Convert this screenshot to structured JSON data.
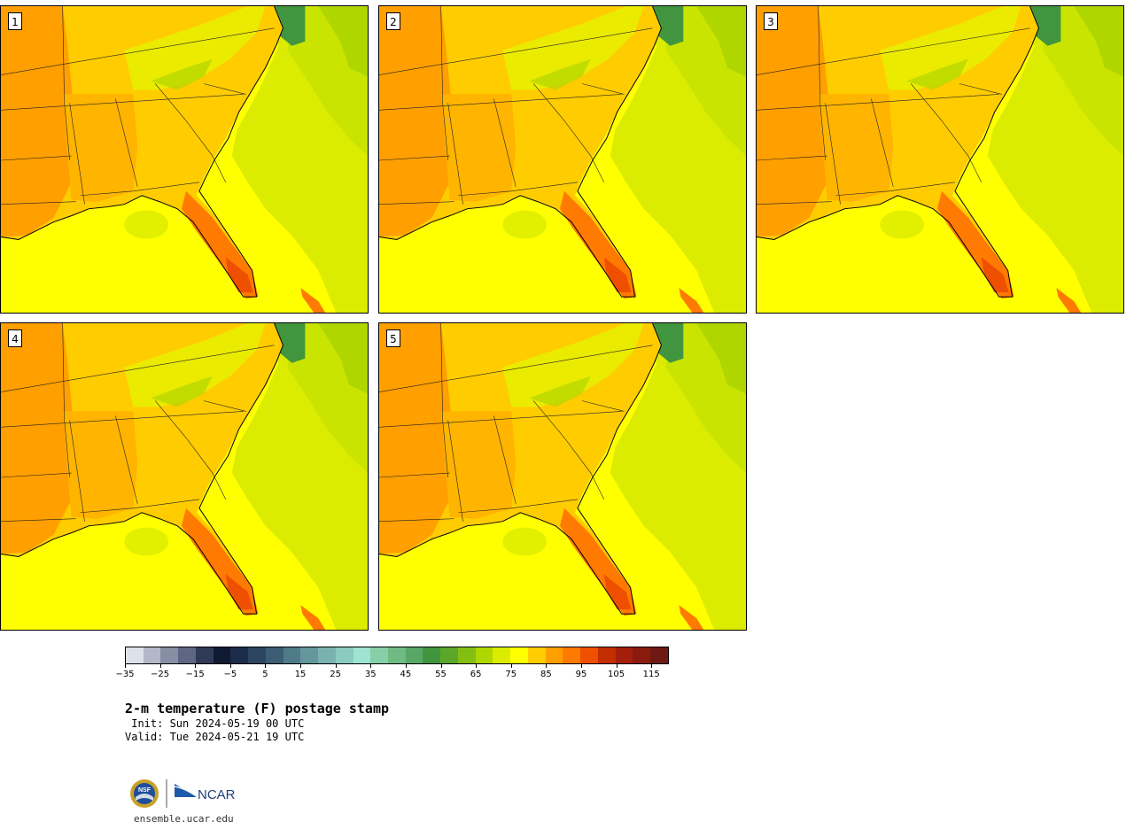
{
  "panels": [
    {
      "label": "1"
    },
    {
      "label": "2"
    },
    {
      "label": "3"
    },
    {
      "label": "4"
    },
    {
      "label": "5"
    }
  ],
  "colorbar": {
    "colors": [
      "#dde2ea",
      "#b3b8c8",
      "#878fa5",
      "#5d6785",
      "#2f3a57",
      "#101a33",
      "#1d2c48",
      "#2c4660",
      "#3b5d74",
      "#4f7a88",
      "#64969b",
      "#79b2ae",
      "#8ccbc0",
      "#9fe3d3",
      "#86cfa7",
      "#6fbb83",
      "#58a766",
      "#42953f",
      "#5aa72a",
      "#83bf12",
      "#b0d600",
      "#dbec00",
      "#ffff00",
      "#ffcc00",
      "#ff9f00",
      "#ff7a00",
      "#ef5000",
      "#c42d00",
      "#a31f0b",
      "#8a1b0e",
      "#6e1a12"
    ],
    "tick_labels": [
      "−35",
      "−25",
      "−15",
      "−5",
      "5",
      "15",
      "25",
      "35",
      "45",
      "55",
      "65",
      "75",
      "85",
      "95",
      "105",
      "115"
    ]
  },
  "title": "2-m temperature (F) postage stamp",
  "init_text": " Init: Sun 2024-05-19 00 UTC",
  "valid_text": "Valid: Tue 2024-05-21 19 UTC",
  "logos": {
    "nsf": "NSF",
    "ncar": "NCAR"
  },
  "footer_url": "ensemble.ucar.edu"
}
